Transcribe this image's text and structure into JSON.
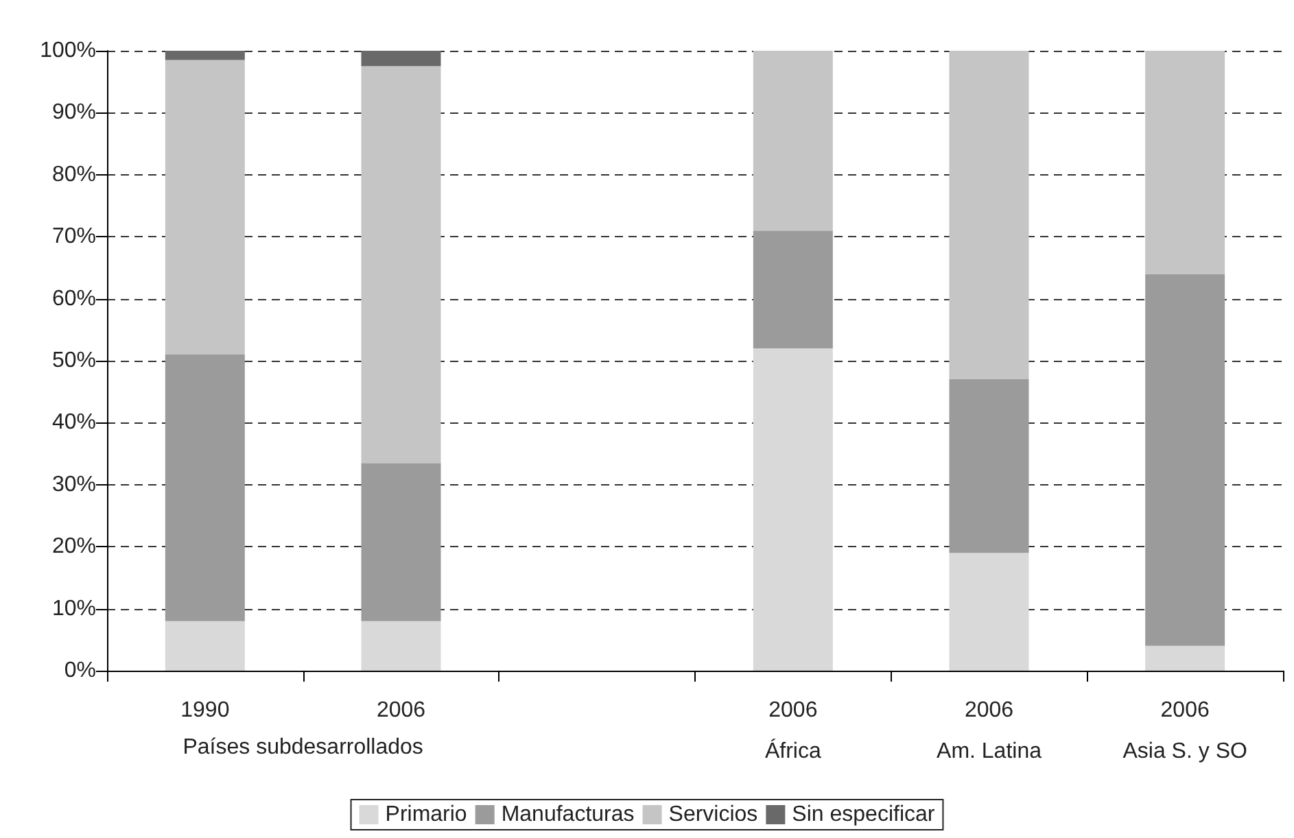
{
  "chart_data": {
    "type": "bar",
    "stacked": true,
    "categories": [
      "1990",
      "2006",
      null,
      "2006\nÁfrica",
      "2006\nAm. Latina",
      "2006\nAsia S. y SO"
    ],
    "series": [
      {
        "name": "Primario",
        "color": "#d9d9d9",
        "values": [
          8,
          8,
          null,
          52,
          19,
          4
        ]
      },
      {
        "name": "Manufacturas",
        "color": "#9b9b9b",
        "values": [
          43,
          25.5,
          null,
          19,
          28,
          60
        ]
      },
      {
        "name": "Servicios",
        "color": "#c5c5c5",
        "values": [
          47.5,
          64,
          null,
          29,
          53,
          36
        ]
      },
      {
        "name": "Sin especificar",
        "color": "#696969",
        "values": [
          1.5,
          2.5,
          null,
          0,
          0,
          0
        ]
      }
    ],
    "ylim": [
      0,
      100
    ],
    "yticks": [
      {
        "value": 0,
        "label": "0%"
      },
      {
        "value": 10,
        "label": "10%"
      },
      {
        "value": 20,
        "label": "20%"
      },
      {
        "value": 30,
        "label": "30%"
      },
      {
        "value": 40,
        "label": "40%"
      },
      {
        "value": 50,
        "label": "50%"
      },
      {
        "value": 60,
        "label": "60%"
      },
      {
        "value": 70,
        "label": "70%"
      },
      {
        "value": 80,
        "label": "80%"
      },
      {
        "value": 90,
        "label": "90%"
      },
      {
        "value": 100,
        "label": "100%"
      }
    ],
    "annotations": [
      {
        "text": "Países subdesarrollados"
      }
    ],
    "grid": "y",
    "legend": "bottom"
  }
}
